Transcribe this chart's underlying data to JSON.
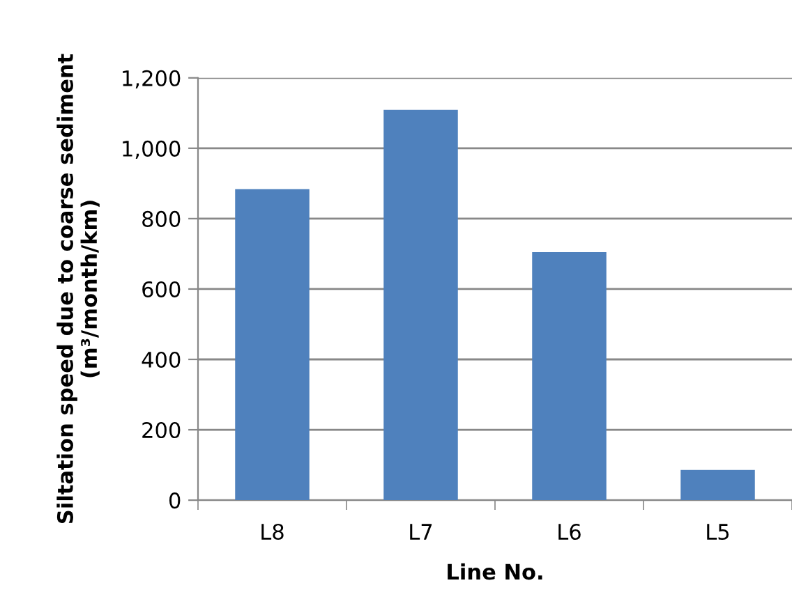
{
  "chart_data": {
    "type": "bar",
    "xlabel": "Line No.",
    "ylabel": "Siltation speed due to coarse sediment\n(m³/month/km)",
    "categories": [
      "L8",
      "L7",
      "L6",
      "L5"
    ],
    "values": [
      884,
      1109,
      705,
      86
    ],
    "color": "#4f81bd",
    "ylim": [
      0,
      1200
    ],
    "yticks": [
      0,
      {
        "value": 200,
        "label": "200"
      },
      {
        "value": 400,
        "label": "400"
      },
      {
        "value": 600,
        "label": "600"
      },
      {
        "value": 800,
        "label": "800"
      },
      {
        "value": 1000,
        "label": "1,000"
      },
      {
        "value": 1200,
        "label": "1,200"
      }
    ],
    "grid": "y"
  }
}
